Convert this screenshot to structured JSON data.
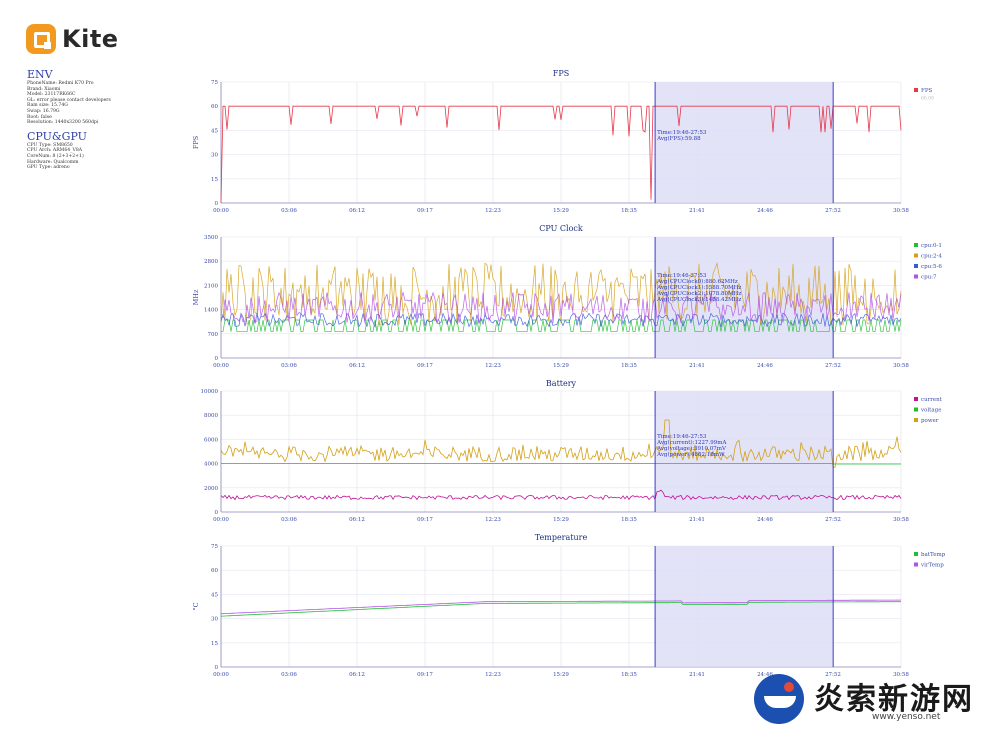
{
  "app": {
    "name": "Kite",
    "brand_color": "#f39a1e"
  },
  "env": {
    "title": "ENV",
    "lines": [
      "PhoneName: Redmi K70 Pro",
      "Brand: Xiaomi",
      "Model: 23117RK66C",
      "GL: error please contact developers",
      "Ram size: 15.74G",
      "Swap: 16.79G",
      "Root: false",
      "Resolution: 1440x3200 560dpi"
    ]
  },
  "cpu_gpu": {
    "title": "CPU&GPU",
    "lines": [
      "CPU Type: SM8650",
      "CPU Arch: ARM64_V8A",
      "CoreNum: 8 (2+3+2+1)",
      "Hardware: Qualcomm",
      "GPU Type: adreno"
    ]
  },
  "x_ticks": [
    "00:00",
    "03:06",
    "06:12",
    "09:17",
    "12:23",
    "15:29",
    "18:35",
    "21:41",
    "24:46",
    "27:52",
    "30:58"
  ],
  "selection": {
    "start": 19.77,
    "end": 27.88,
    "duration": 30.97,
    "label": "Time:19:46-27:53"
  },
  "chart_data": [
    {
      "type": "line",
      "title": "FPS",
      "ylabel": "FPS",
      "ylim": [
        0,
        75
      ],
      "yticks": [
        "0",
        "15",
        "30",
        "45",
        "60",
        "75"
      ],
      "grid": true,
      "legend": "right",
      "series": [
        {
          "name": "FPS",
          "color": "#e8394a",
          "typical": 60
        }
      ],
      "legend_sub": "60.00",
      "annotation": [
        "Time:19:46-27:53",
        "Avg(FPS):59.88"
      ]
    },
    {
      "type": "line",
      "title": "CPU Clock",
      "ylabel": "MHz",
      "ylim": [
        0,
        3500
      ],
      "yticks": [
        "0",
        "700",
        "1400",
        "2100",
        "2800",
        "3500"
      ],
      "grid": true,
      "legend": "right",
      "series": [
        {
          "name": "cpu:0-1",
          "color": "#1fbf35",
          "typical_range": [
            760,
            1100
          ]
        },
        {
          "name": "cpu:2-4",
          "color": "#d4a017",
          "typical_range": [
            950,
            2750
          ]
        },
        {
          "name": "cpu:5-6",
          "color": "#3a5bd9",
          "typical_range": [
            900,
            1300
          ]
        },
        {
          "name": "cpu:7",
          "color": "#b452e6",
          "typical_range": [
            1000,
            1900
          ]
        }
      ],
      "annotation": [
        "Time:19:46-27:53",
        "Avg(CPUClock0):880.62MHz",
        "Avg(CPUClock1):1588.70MHz",
        "Avg(CPUClock2):1078.80MHz",
        "Avg(CPUClock3):1458.42MHz"
      ]
    },
    {
      "type": "line",
      "title": "Battery",
      "ylabel": "",
      "ylim": [
        0,
        10000
      ],
      "yticks": [
        "0",
        "2000",
        "4000",
        "6000",
        "8000",
        "10000"
      ],
      "grid": true,
      "legend": "right",
      "series": [
        {
          "name": "current",
          "color": "#c0139a",
          "typical": 1200
        },
        {
          "name": "voltage",
          "color": "#1fbf35",
          "typical": 4000
        },
        {
          "name": "power",
          "color": "#d4a017",
          "typical": 4800
        }
      ],
      "annotation": [
        "Time:19:46-27:53",
        "Avg(current):1227.99mA",
        "Avg(voltage):3910.07mV",
        "Avg(power):4802.18mW"
      ]
    },
    {
      "type": "line",
      "title": "Temperature",
      "ylabel": "°C",
      "ylim": [
        0,
        75
      ],
      "yticks": [
        "0",
        "15",
        "30",
        "45",
        "60",
        "75"
      ],
      "grid": true,
      "legend": "right",
      "series": [
        {
          "name": "batTemp",
          "color": "#1fbf35",
          "start": 31.5,
          "end": 40.5
        },
        {
          "name": "virTemp",
          "color": "#b452e6",
          "start": 33,
          "end": 41.5
        }
      ],
      "annotation": []
    }
  ],
  "watermark": {
    "text": "炎索新游网",
    "url": "www.yenso.net"
  }
}
